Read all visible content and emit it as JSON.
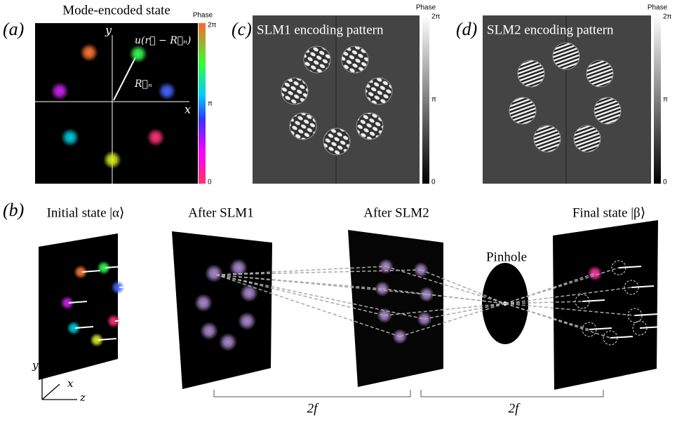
{
  "panel_a": {
    "label": "(a)",
    "title": "Mode-encoded state",
    "axis_y": "y",
    "axis_x": "x",
    "mode_label": "u(r⃗ − R⃗ₙ)",
    "vector_label": "R⃗ₙ",
    "colorbar": {
      "title": "Phase",
      "top": "2π",
      "middle": "π",
      "bottom": "0"
    }
  },
  "panel_c": {
    "label": "(c)",
    "title": "SLM1 encoding pattern",
    "colorbar": {
      "title": "Phase",
      "top": "2π",
      "middle": "π",
      "bottom": "0"
    }
  },
  "panel_d": {
    "label": "(d)",
    "title": "SLM2 encoding pattern",
    "colorbar": {
      "title": "Phase",
      "top": "2π",
      "middle": "π",
      "bottom": "0"
    }
  },
  "panel_b": {
    "label": "(b)",
    "stages": [
      "Initial state |α⟩",
      "After SLM1",
      "After SLM2",
      "Final state |β⟩"
    ],
    "pinhole": "Pinhole",
    "axes": [
      "y",
      "x",
      "z"
    ],
    "distances": [
      "2f",
      "2f"
    ]
  }
}
